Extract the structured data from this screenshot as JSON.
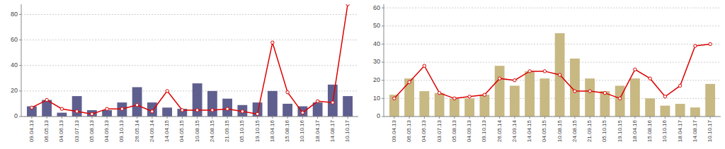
{
  "chart_data": [
    {
      "type": "bar",
      "categories": [
        "09.04.13",
        "06.05.13",
        "04.06.13",
        "03.07.13",
        "05.08.13",
        "04.09.13",
        "09.10.13",
        "26.05.14",
        "24.09.14",
        "14.04.15",
        "04.05.15",
        "10.08.15",
        "24.08.15",
        "21.09.15",
        "05.10.15",
        "19.10.15",
        "18.04.16",
        "15.08.16",
        "10.10.16",
        "18.04.17",
        "14.08.17",
        "10.10.17"
      ],
      "series": [
        {
          "type": "bar",
          "color": "#5f5f8f",
          "values": [
            8,
            13,
            3,
            16,
            5,
            5,
            11,
            23,
            11,
            7,
            6,
            26,
            20,
            14,
            9,
            11,
            20,
            10,
            8,
            11,
            25,
            16
          ]
        },
        {
          "type": "line",
          "color": "#dd0000",
          "marker": "circle",
          "values": [
            7,
            13,
            6,
            4,
            2,
            6,
            6,
            9,
            4,
            20,
            5,
            5,
            5,
            6,
            4,
            2,
            58,
            19,
            3,
            12,
            11,
            88
          ]
        }
      ],
      "ylim": [
        0,
        88
      ],
      "yticks": [
        0,
        20,
        40,
        60,
        80
      ],
      "grid": true
    },
    {
      "type": "bar",
      "categories": [
        "09.04.13",
        "06.05.13",
        "04.06.13",
        "03.07.13",
        "05.08.13",
        "04.09.13",
        "09.10.13",
        "26.05.14",
        "24.09.14",
        "14.04.15",
        "04.05.15",
        "10.08.15",
        "24.08.15",
        "21.09.15",
        "05.10.15",
        "19.10.15",
        "18.04.16",
        "15.08.16",
        "10.10.16",
        "18.04.17",
        "14.08.17",
        "10.10.17"
      ],
      "series": [
        {
          "type": "bar",
          "color": "#c8b882",
          "values": [
            12,
            21,
            14,
            13,
            10,
            10,
            12,
            28,
            17,
            25,
            21,
            46,
            32,
            21,
            14,
            17,
            21,
            10,
            6,
            7,
            5,
            18
          ]
        },
        {
          "type": "line",
          "color": "#dd0000",
          "marker": "circle",
          "values": [
            10,
            19,
            28,
            13,
            10,
            11,
            12,
            21,
            20,
            25,
            25,
            23,
            14,
            14,
            13,
            10,
            26,
            21,
            11,
            17,
            39,
            40
          ]
        }
      ],
      "ylim": [
        0,
        62
      ],
      "yticks": [
        0,
        10,
        20,
        30,
        40,
        50,
        60
      ],
      "grid": true
    }
  ]
}
